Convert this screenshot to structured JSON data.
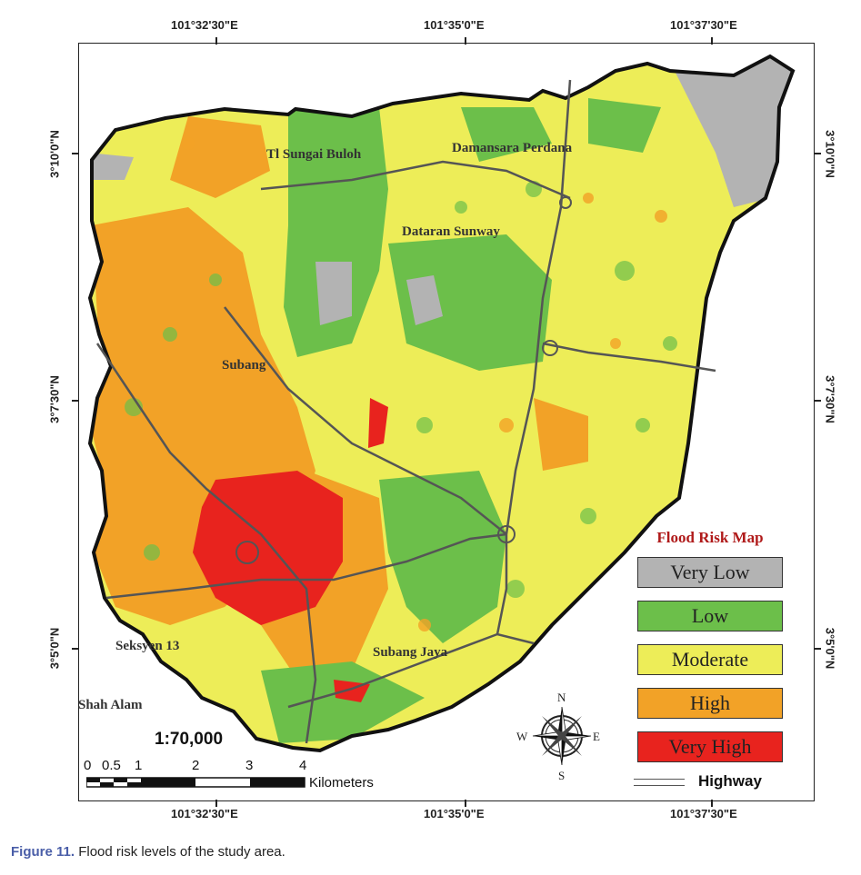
{
  "map": {
    "top_longitudes": [
      "101°32'30\"E",
      "101°35'0\"E",
      "101°37'30\"E"
    ],
    "bottom_longitudes": [
      "101°32'30\"E",
      "101°35'0\"E",
      "101°37'30\"E"
    ],
    "left_latitudes": [
      "3°10'0\"N",
      "3°7'30\"N",
      "3°5'0\"N"
    ],
    "right_latitudes": [
      "3°10'0\"N",
      "3°7'30\"N",
      "3°5'0\"N"
    ],
    "places": [
      "Tl Sungai Buloh",
      "Damansara Perdana",
      "Dataran Sunway",
      "Subang",
      "Seksyen 13",
      "Subang Jaya",
      "Shah Alam"
    ],
    "colors": {
      "very_low": "#b3b3b3",
      "low": "#6cbf4a",
      "moderate": "#eded58",
      "high": "#f2a227",
      "very_high": "#e8231e",
      "boundary": "#111111",
      "road": "#555555"
    }
  },
  "legend": {
    "title": "Flood Risk Map",
    "items": [
      "Very Low",
      "Low",
      "Moderate",
      "High",
      "Very High"
    ],
    "highway_label": "Highway"
  },
  "scale": {
    "ratio": "1:70,000",
    "labels": [
      "0",
      "0.5",
      "1",
      "2",
      "3",
      "4"
    ],
    "unit": "Kilometers"
  },
  "compass": {
    "n": "N",
    "s": "S",
    "e": "E",
    "w": "W"
  },
  "caption": {
    "figure": "Figure 11.",
    "text": " Flood risk levels of the study area."
  }
}
